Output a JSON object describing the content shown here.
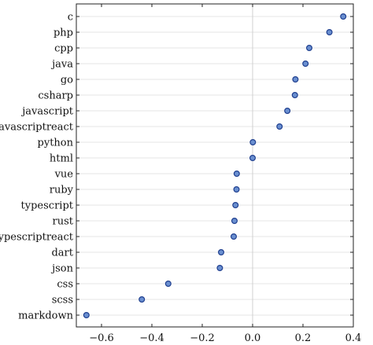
{
  "chart_data": {
    "type": "scatter",
    "title": "",
    "xlabel": "",
    "ylabel": "",
    "categories": [
      "c",
      "php",
      "cpp",
      "java",
      "go",
      "csharp",
      "javascript",
      "javascriptreact",
      "python",
      "html",
      "vue",
      "ruby",
      "typescript",
      "rust",
      "typescriptreact",
      "dart",
      "json",
      "css",
      "scss",
      "markdown"
    ],
    "values": [
      0.36,
      0.305,
      0.225,
      0.21,
      0.17,
      0.168,
      0.138,
      0.107,
      0.001,
      0.0,
      -0.063,
      -0.064,
      -0.068,
      -0.072,
      -0.075,
      -0.125,
      -0.13,
      -0.335,
      -0.44,
      -0.66
    ],
    "xlim": [
      -0.7,
      0.4
    ],
    "xticks": [
      -0.6,
      -0.4,
      -0.2,
      0.0,
      0.2,
      0.4
    ],
    "xtick_labels": [
      "−0.6",
      "−0.4",
      "−0.2",
      "0.0",
      "0.2",
      "0.4"
    ],
    "grid": true,
    "zero_line": true,
    "colors": {
      "marker_fill": "#6a8fd0",
      "marker_edge": "#1f3f8f",
      "grid": "#e6e6e6",
      "zero_line": "#d0d0d0",
      "axis": "#222222"
    }
  }
}
